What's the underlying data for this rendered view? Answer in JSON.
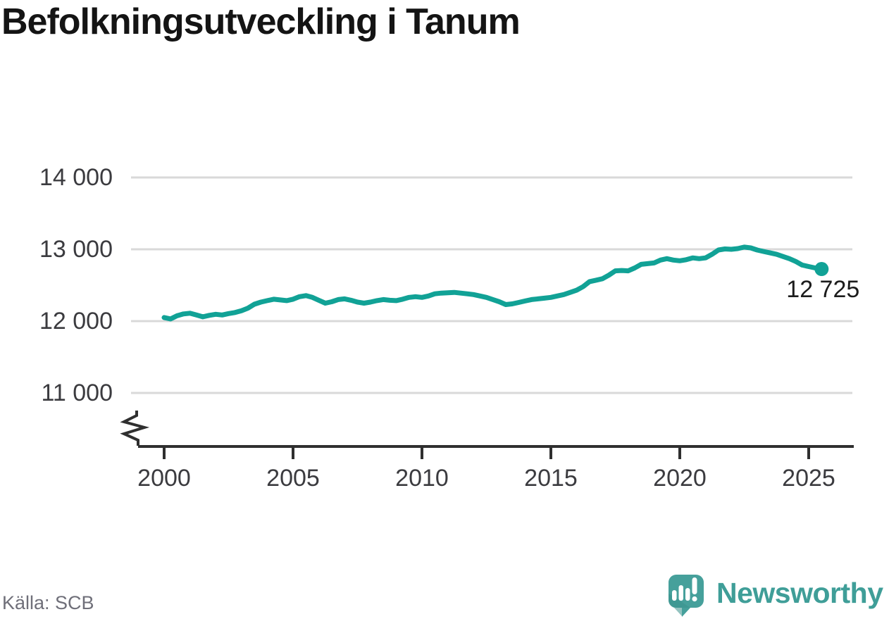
{
  "title": "Befolkningsutveckling i Tanum",
  "source": "Källa: SCB",
  "branding": {
    "name": "Newsworthy",
    "logo_icon": "speech-bubble-bar-chart-exclamation"
  },
  "colors": {
    "line": "#11a296",
    "marker": "#11a296",
    "grid": "#d9d9d9",
    "axis": "#2f2f2f",
    "tick_label": "#3b3b3f",
    "end_label": "#1c1c1c",
    "title": "#141414",
    "source": "#6f6f79",
    "brand_text": "#3f9e98",
    "badge": "#46a09b",
    "badge_shade": "#3b918d"
  },
  "chart_data": {
    "type": "line",
    "title": "Befolkningsutveckling i Tanum",
    "xlabel": "",
    "ylabel": "",
    "grid": "horizontal",
    "legend": "none",
    "axis_break": true,
    "xlim": [
      1998.7,
      2026.7
    ],
    "ylim": [
      10800,
      14300
    ],
    "y_ticks": [
      {
        "value": 14000,
        "label": "14 000"
      },
      {
        "value": 13000,
        "label": "13 000"
      },
      {
        "value": 12000,
        "label": "12 000"
      },
      {
        "value": 11000,
        "label": "11 000"
      }
    ],
    "x_ticks": [
      {
        "value": 2000,
        "label": "2000"
      },
      {
        "value": 2005,
        "label": "2005"
      },
      {
        "value": 2010,
        "label": "2010"
      },
      {
        "value": 2015,
        "label": "2015"
      },
      {
        "value": 2020,
        "label": "2020"
      },
      {
        "value": 2025,
        "label": "2025"
      }
    ],
    "end_point": {
      "x": 2025.5,
      "value": 12725,
      "label": "12 725"
    },
    "x": [
      2000.0,
      2000.25,
      2000.5,
      2000.75,
      2001.0,
      2001.25,
      2001.5,
      2001.75,
      2002.0,
      2002.25,
      2002.5,
      2002.75,
      2003.0,
      2003.25,
      2003.5,
      2003.75,
      2004.0,
      2004.25,
      2004.5,
      2004.75,
      2005.0,
      2005.25,
      2005.5,
      2005.75,
      2006.0,
      2006.25,
      2006.5,
      2006.75,
      2007.0,
      2007.25,
      2007.5,
      2007.75,
      2008.0,
      2008.25,
      2008.5,
      2008.75,
      2009.0,
      2009.25,
      2009.5,
      2009.75,
      2010.0,
      2010.25,
      2010.5,
      2010.75,
      2011.0,
      2011.25,
      2011.5,
      2011.75,
      2012.0,
      2012.25,
      2012.5,
      2012.75,
      2013.0,
      2013.25,
      2013.5,
      2013.75,
      2014.0,
      2014.25,
      2014.5,
      2014.75,
      2015.0,
      2015.25,
      2015.5,
      2015.75,
      2016.0,
      2016.25,
      2016.5,
      2016.75,
      2017.0,
      2017.25,
      2017.5,
      2017.75,
      2018.0,
      2018.25,
      2018.5,
      2018.75,
      2019.0,
      2019.25,
      2019.5,
      2019.75,
      2020.0,
      2020.25,
      2020.5,
      2020.75,
      2021.0,
      2021.25,
      2021.5,
      2021.75,
      2022.0,
      2022.25,
      2022.5,
      2022.75,
      2023.0,
      2023.25,
      2023.5,
      2023.75,
      2024.0,
      2024.25,
      2024.5,
      2024.75,
      2025.0,
      2025.25,
      2025.5
    ],
    "values": [
      12050,
      12030,
      12075,
      12100,
      12110,
      12085,
      12060,
      12080,
      12095,
      12085,
      12105,
      12120,
      12145,
      12180,
      12235,
      12265,
      12285,
      12305,
      12295,
      12285,
      12305,
      12340,
      12355,
      12330,
      12290,
      12250,
      12270,
      12300,
      12310,
      12290,
      12265,
      12250,
      12265,
      12285,
      12300,
      12290,
      12285,
      12305,
      12330,
      12340,
      12330,
      12350,
      12380,
      12390,
      12395,
      12400,
      12390,
      12380,
      12370,
      12350,
      12330,
      12300,
      12270,
      12230,
      12240,
      12260,
      12280,
      12300,
      12310,
      12320,
      12330,
      12350,
      12370,
      12400,
      12430,
      12480,
      12550,
      12570,
      12590,
      12640,
      12700,
      12705,
      12700,
      12740,
      12790,
      12800,
      12810,
      12850,
      12870,
      12850,
      12840,
      12855,
      12880,
      12870,
      12880,
      12930,
      12990,
      13005,
      13000,
      13010,
      13030,
      13020,
      12990,
      12970,
      12950,
      12930,
      12900,
      12870,
      12830,
      12780,
      12760,
      12740,
      12725
    ]
  }
}
